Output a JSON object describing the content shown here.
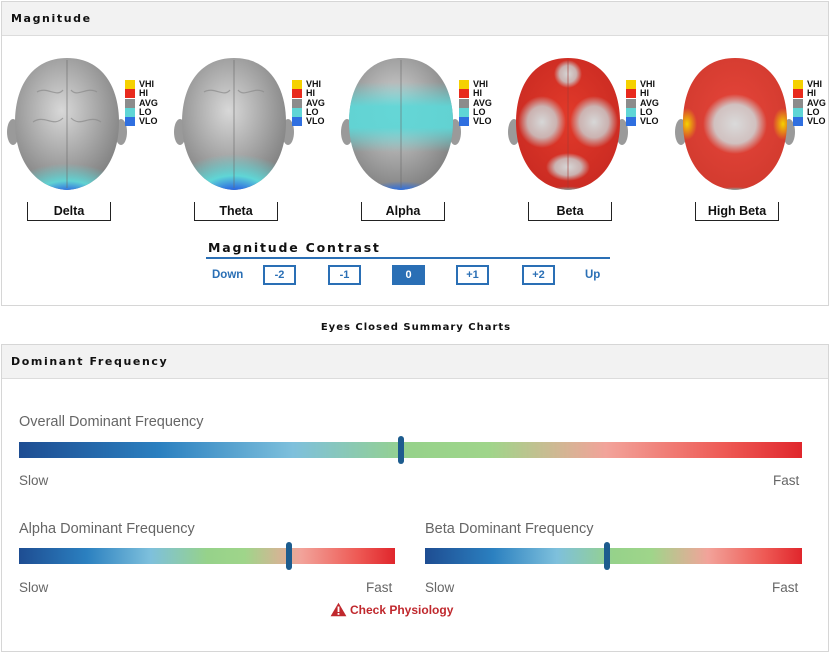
{
  "magnitude": {
    "title": "Magnitude",
    "legend": [
      {
        "label": "VHI",
        "color": "#f5d100"
      },
      {
        "label": "HI",
        "color": "#e82a1d"
      },
      {
        "label": "AVG",
        "color": "#8c8c8c"
      },
      {
        "label": "LO",
        "color": "#5fd6d6"
      },
      {
        "label": "VLO",
        "color": "#2f6fe0"
      }
    ],
    "bands": [
      {
        "label": "Delta",
        "state": "low-posterior"
      },
      {
        "label": "Theta",
        "state": "low-posterior"
      },
      {
        "label": "Alpha",
        "state": "low-band"
      },
      {
        "label": "Beta",
        "state": "high"
      },
      {
        "label": "High Beta",
        "state": "very-high"
      }
    ],
    "contrast": {
      "title": "Magnitude Contrast",
      "down_label": "Down",
      "up_label": "Up",
      "buttons": [
        "-2",
        "-1",
        "0",
        "+1",
        "+2"
      ],
      "selected": "0"
    }
  },
  "summary_caption": "Eyes Closed Summary Charts",
  "dominant": {
    "title": "Dominant Frequency",
    "overall": {
      "title": "Overall Dominant Frequency",
      "slow": "Slow",
      "fast": "Fast",
      "level": 0.488
    },
    "alpha": {
      "title": "Alpha Dominant Frequency",
      "slow": "Slow",
      "fast": "Fast",
      "level": 0.718
    },
    "beta": {
      "title": "Beta Dominant Frequency",
      "slow": "Slow",
      "fast": "Fast",
      "level": 0.482
    },
    "warning": {
      "text": "Check Physiology",
      "icon": "warning-triangle-icon",
      "color": "#c0282d"
    }
  }
}
